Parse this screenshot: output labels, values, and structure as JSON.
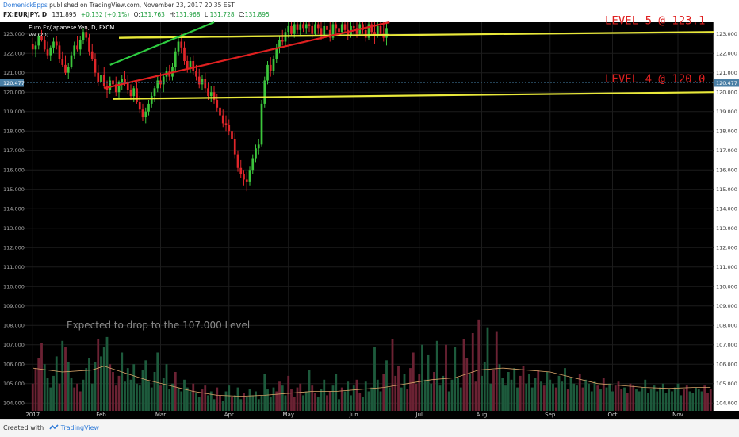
{
  "header": {
    "author": "DomenickEpps",
    "published": "published on TradingView.com, November 23, 2017 20:35 EST",
    "symbol": "FX:EURJPY, D",
    "last": "131.895",
    "change": "+0.132 (+0.1%)",
    "o_label": "O:",
    "o_value": "131.763",
    "h_label": "H:",
    "h_value": "131.968",
    "l_label": "L:",
    "l_value": "131.728",
    "c_label": "C:",
    "c_value": "131.895"
  },
  "footer": {
    "created_with": "Created with",
    "brand": "TradingView"
  },
  "chart_data": {
    "type": "candlestick",
    "title": "Euro Fx/Japanese Yen, D, FXCM",
    "volume_label": "Vol (20)",
    "y_ticks": [
      104,
      105,
      106,
      107,
      108,
      109,
      110,
      111,
      112,
      113,
      114,
      115,
      116,
      117,
      118,
      119,
      120,
      121,
      122,
      123
    ],
    "y_tick_labels": [
      "104.000",
      "105.000",
      "106.000",
      "107.000",
      "108.000",
      "109.000",
      "110.000",
      "111.000",
      "112.000",
      "113.000",
      "114.000",
      "115.000",
      "116.000",
      "117.000",
      "118.000",
      "119.000",
      "120.000",
      "121.000",
      "122.000",
      "123.000"
    ],
    "ylim": [
      103.6,
      123.6
    ],
    "x_labels": [
      {
        "label": "2017",
        "t": 0
      },
      {
        "label": "Feb",
        "t": 23
      },
      {
        "label": "Mar",
        "t": 43
      },
      {
        "label": "Apr",
        "t": 66
      },
      {
        "label": "May",
        "t": 86
      },
      {
        "label": "Jun",
        "t": 108
      },
      {
        "label": "Jul",
        "t": 130
      },
      {
        "label": "Aug",
        "t": 151
      },
      {
        "label": "Sep",
        "t": 174
      },
      {
        "label": "Oct",
        "t": 195
      },
      {
        "label": "Nov",
        "t": 217
      }
    ],
    "xlim": [
      -3,
      229
    ],
    "price_marker": {
      "label": "120.477",
      "value": 120.477
    },
    "annotations": [
      {
        "text": "LEVEL 5 @ 123.1",
        "value": 123.1,
        "color": "#e02020"
      },
      {
        "text": "LEVEL 4 @ 120.0",
        "value": 120.0,
        "color": "#e02020"
      },
      {
        "text": "Expected to drop to the 107.000 Level",
        "color": "#8a8a8a"
      }
    ],
    "trendlines": [
      {
        "color": "#e8e83a",
        "points": [
          [
            29,
            122.8
          ],
          [
            229,
            123.1
          ]
        ]
      },
      {
        "color": "#e8e83a",
        "points": [
          [
            27,
            119.65
          ],
          [
            229,
            120.0
          ]
        ]
      },
      {
        "color": "#e8e83a",
        "points": [
          [
            29,
            122.8
          ],
          [
            120,
            122.95
          ]
        ]
      },
      {
        "color": "#2ecc40",
        "points": [
          [
            26,
            121.4
          ],
          [
            61,
            123.6
          ]
        ]
      },
      {
        "color": "#e02020",
        "points": [
          [
            24,
            120.2
          ],
          [
            120,
            123.6
          ]
        ]
      }
    ],
    "candles": [
      [
        0,
        122.5,
        122.8,
        121.9,
        122.2
      ],
      [
        1,
        122.2,
        122.6,
        121.8,
        122.4
      ],
      [
        2,
        122.4,
        123.0,
        122.2,
        122.9
      ],
      [
        3,
        122.9,
        123.2,
        122.6,
        122.7
      ],
      [
        4,
        122.7,
        122.9,
        122.1,
        122.2
      ],
      [
        5,
        122.2,
        122.6,
        121.7,
        121.9
      ],
      [
        6,
        121.9,
        122.4,
        121.6,
        122.3
      ],
      [
        7,
        122.3,
        122.8,
        122.0,
        122.6
      ],
      [
        8,
        122.6,
        122.9,
        122.2,
        122.4
      ],
      [
        9,
        122.4,
        122.6,
        121.5,
        121.7
      ],
      [
        10,
        121.7,
        122.1,
        121.3,
        121.4
      ],
      [
        11,
        121.4,
        121.9,
        120.9,
        121.0
      ],
      [
        12,
        121.0,
        121.5,
        120.7,
        121.3
      ],
      [
        13,
        121.3,
        122.1,
        121.2,
        121.9
      ],
      [
        14,
        121.9,
        122.6,
        121.7,
        122.4
      ],
      [
        15,
        122.4,
        122.9,
        122.1,
        122.2
      ],
      [
        16,
        122.2,
        122.9,
        121.9,
        122.7
      ],
      [
        17,
        122.7,
        123.3,
        122.5,
        123.1
      ],
      [
        18,
        123.1,
        123.4,
        122.6,
        122.8
      ],
      [
        19,
        122.8,
        123.0,
        121.9,
        122.1
      ],
      [
        20,
        122.1,
        122.5,
        121.6,
        121.7
      ],
      [
        21,
        121.7,
        122.0,
        120.8,
        121.0
      ],
      [
        22,
        121.0,
        121.4,
        120.3,
        120.5
      ],
      [
        23,
        120.5,
        121.0,
        120.0,
        120.9
      ],
      [
        24,
        120.9,
        121.3,
        120.2,
        120.3
      ],
      [
        25,
        120.3,
        120.6,
        119.7,
        120.1
      ],
      [
        26,
        120.1,
        120.8,
        119.9,
        120.6
      ],
      [
        27,
        120.6,
        121.0,
        120.2,
        120.4
      ],
      [
        28,
        120.4,
        120.8,
        119.8,
        120.0
      ],
      [
        29,
        120.0,
        120.6,
        119.7,
        120.5
      ],
      [
        30,
        120.5,
        120.9,
        120.1,
        120.7
      ],
      [
        31,
        120.7,
        121.1,
        120.3,
        120.5
      ],
      [
        32,
        120.5,
        120.9,
        119.9,
        120.1
      ],
      [
        33,
        120.1,
        120.4,
        119.6,
        119.8
      ],
      [
        34,
        119.8,
        120.3,
        119.5,
        120.2
      ],
      [
        35,
        120.2,
        120.5,
        119.4,
        119.5
      ],
      [
        36,
        119.5,
        119.8,
        118.9,
        119.1
      ],
      [
        37,
        119.1,
        119.4,
        118.5,
        118.7
      ],
      [
        38,
        118.7,
        119.2,
        118.4,
        119.0
      ],
      [
        39,
        119.0,
        119.6,
        118.8,
        119.4
      ],
      [
        40,
        119.4,
        120.0,
        119.2,
        119.8
      ],
      [
        41,
        119.8,
        120.3,
        119.5,
        120.2
      ],
      [
        42,
        120.2,
        120.8,
        120.0,
        120.6
      ],
      [
        43,
        120.6,
        121.0,
        120.2,
        120.4
      ],
      [
        44,
        120.4,
        120.9,
        120.0,
        120.8
      ],
      [
        45,
        120.8,
        121.3,
        120.5,
        121.1
      ],
      [
        46,
        121.1,
        121.4,
        120.6,
        120.8
      ],
      [
        47,
        120.8,
        121.5,
        120.6,
        121.3
      ],
      [
        48,
        121.3,
        122.3,
        121.1,
        122.1
      ],
      [
        49,
        122.1,
        122.8,
        121.9,
        122.6
      ],
      [
        50,
        122.6,
        123.0,
        122.0,
        122.3
      ],
      [
        51,
        122.3,
        122.6,
        121.4,
        121.6
      ],
      [
        52,
        121.6,
        121.9,
        121.0,
        121.2
      ],
      [
        53,
        121.2,
        121.8,
        121.0,
        121.6
      ],
      [
        54,
        121.6,
        121.9,
        120.9,
        121.1
      ],
      [
        55,
        121.1,
        121.4,
        120.6,
        120.8
      ],
      [
        56,
        120.8,
        121.2,
        120.2,
        120.4
      ],
      [
        57,
        120.4,
        120.9,
        120.1,
        120.7
      ],
      [
        58,
        120.7,
        121.0,
        120.0,
        120.2
      ],
      [
        59,
        120.2,
        120.5,
        119.6,
        119.8
      ],
      [
        60,
        119.8,
        120.3,
        119.5,
        120.0
      ],
      [
        61,
        120.0,
        120.3,
        119.4,
        119.6
      ],
      [
        62,
        119.6,
        119.9,
        119.0,
        119.2
      ],
      [
        63,
        119.2,
        119.5,
        118.6,
        118.8
      ],
      [
        64,
        118.8,
        119.1,
        118.2,
        118.4
      ],
      [
        65,
        118.4,
        118.8,
        118.0,
        118.3
      ],
      [
        66,
        118.3,
        118.6,
        117.8,
        118.0
      ],
      [
        67,
        118.0,
        118.3,
        117.4,
        117.6
      ],
      [
        68,
        117.6,
        117.9,
        116.6,
        116.8
      ],
      [
        69,
        116.8,
        117.0,
        115.9,
        116.1
      ],
      [
        70,
        116.1,
        116.5,
        115.6,
        115.8
      ],
      [
        71,
        115.8,
        116.0,
        115.2,
        115.5
      ],
      [
        72,
        115.5,
        115.9,
        114.9,
        115.4
      ],
      [
        73,
        115.4,
        116.2,
        115.2,
        116.0
      ],
      [
        74,
        116.0,
        116.8,
        115.8,
        116.6
      ],
      [
        75,
        116.6,
        117.3,
        116.4,
        117.1
      ],
      [
        76,
        117.1,
        117.6,
        116.8,
        117.3
      ],
      [
        77,
        117.3,
        119.6,
        117.2,
        119.4
      ],
      [
        78,
        119.4,
        120.8,
        119.2,
        120.6
      ],
      [
        79,
        120.6,
        121.6,
        120.4,
        121.4
      ],
      [
        80,
        121.4,
        121.8,
        120.8,
        121.1
      ],
      [
        81,
        121.1,
        121.9,
        120.9,
        121.7
      ],
      [
        82,
        121.7,
        122.5,
        121.5,
        122.3
      ],
      [
        83,
        122.3,
        122.9,
        122.0,
        122.7
      ],
      [
        84,
        122.7,
        123.2,
        122.4,
        122.6
      ],
      [
        85,
        122.6,
        123.3,
        122.4,
        123.1
      ],
      [
        86,
        123.1,
        123.6,
        122.8,
        123.4
      ],
      [
        87,
        123.4,
        123.6,
        122.9,
        123.0
      ],
      [
        88,
        123.0,
        123.6,
        122.8,
        123.5
      ],
      [
        89,
        123.5,
        123.6,
        123.0,
        123.2
      ],
      [
        90,
        123.2,
        123.6,
        122.9,
        123.5
      ],
      [
        91,
        123.5,
        123.6,
        123.1,
        123.3
      ],
      [
        92,
        123.3,
        123.6,
        123.0,
        123.5
      ],
      [
        93,
        123.5,
        123.6,
        123.1,
        123.4
      ],
      [
        94,
        123.4,
        123.6,
        122.8,
        123.0
      ],
      [
        95,
        123.0,
        123.6,
        122.9,
        123.5
      ],
      [
        96,
        123.5,
        123.6,
        123.0,
        123.3
      ],
      [
        97,
        123.3,
        123.6,
        122.7,
        122.9
      ],
      [
        98,
        122.9,
        123.6,
        122.8,
        123.4
      ],
      [
        99,
        123.4,
        123.6,
        123.0,
        123.2
      ],
      [
        100,
        123.2,
        123.6,
        122.6,
        122.8
      ],
      [
        101,
        122.8,
        123.6,
        122.7,
        123.5
      ],
      [
        102,
        123.5,
        123.6,
        123.0,
        123.3
      ],
      [
        103,
        123.3,
        123.6,
        122.9,
        123.1
      ],
      [
        104,
        123.1,
        123.6,
        123.0,
        123.5
      ],
      [
        105,
        123.5,
        123.6,
        123.1,
        123.2
      ],
      [
        106,
        123.2,
        123.6,
        122.7,
        122.9
      ],
      [
        107,
        122.9,
        123.6,
        122.8,
        123.4
      ],
      [
        108,
        123.4,
        123.6,
        123.0,
        123.3
      ],
      [
        109,
        123.3,
        123.6,
        122.8,
        123.0
      ],
      [
        110,
        123.0,
        123.6,
        122.9,
        123.5
      ],
      [
        111,
        123.5,
        123.6,
        123.0,
        123.2
      ],
      [
        112,
        123.2,
        123.6,
        122.6,
        122.8
      ],
      [
        113,
        122.8,
        123.6,
        122.7,
        123.5
      ],
      [
        114,
        123.5,
        123.6,
        122.9,
        123.1
      ],
      [
        115,
        123.1,
        123.6,
        122.5,
        122.9
      ],
      [
        116,
        122.9,
        123.6,
        122.8,
        123.4
      ],
      [
        117,
        123.4,
        123.6,
        122.9,
        123.0
      ],
      [
        118,
        123.0,
        123.6,
        122.6,
        122.8
      ],
      [
        119,
        122.8,
        123.6,
        122.4,
        123.3
      ]
    ],
    "volume_ma": [
      [
        0,
        105.8
      ],
      [
        10,
        105.6
      ],
      [
        20,
        105.7
      ],
      [
        24,
        105.9
      ],
      [
        30,
        105.6
      ],
      [
        38,
        105.2
      ],
      [
        46,
        104.9
      ],
      [
        54,
        104.6
      ],
      [
        62,
        104.4
      ],
      [
        70,
        104.35
      ],
      [
        78,
        104.4
      ],
      [
        86,
        104.5
      ],
      [
        94,
        104.6
      ],
      [
        102,
        104.6
      ],
      [
        110,
        104.7
      ],
      [
        118,
        104.8
      ],
      [
        126,
        105.0
      ],
      [
        134,
        105.2
      ],
      [
        142,
        105.3
      ],
      [
        150,
        105.7
      ],
      [
        158,
        105.8
      ],
      [
        166,
        105.7
      ],
      [
        174,
        105.6
      ],
      [
        182,
        105.3
      ],
      [
        190,
        105.0
      ],
      [
        198,
        104.9
      ],
      [
        206,
        104.8
      ],
      [
        214,
        104.75
      ],
      [
        222,
        104.8
      ],
      [
        228,
        104.8
      ]
    ],
    "volume": [
      105.0,
      105.8,
      106.3,
      107.1,
      106.0,
      105.3,
      104.8,
      105.4,
      106.4,
      105.0,
      107.2,
      106.9,
      106.1,
      105.3,
      104.8,
      105.0,
      104.6,
      105.2,
      105.8,
      106.3,
      105.0,
      106.1,
      107.3,
      106.4,
      106.9,
      107.4,
      106.0,
      105.6,
      104.9,
      105.4,
      106.6,
      105.1,
      105.8,
      105.2,
      106.0,
      105.0,
      104.9,
      105.7,
      106.2,
      105.1,
      104.8,
      105.6,
      106.6,
      104.9,
      105.3,
      106.0,
      104.7,
      105.0,
      105.6,
      104.8,
      104.6,
      105.2,
      104.8,
      104.6,
      105.0,
      104.5,
      104.3,
      104.7,
      104.9,
      104.4,
      104.6,
      104.2,
      104.8,
      104.4,
      104.1,
      104.6,
      104.9,
      104.3,
      104.4,
      104.8,
      104.2,
      104.5,
      104.3,
      104.7,
      104.4,
      104.6,
      104.2,
      104.4,
      105.5,
      104.7,
      104.3,
      104.8,
      104.6,
      105.1,
      104.9,
      104.4,
      105.4,
      104.7,
      104.3,
      104.8,
      105.0,
      104.4,
      104.6,
      105.7,
      104.9,
      104.5,
      104.3,
      104.7,
      105.2,
      104.4,
      104.6,
      104.9,
      105.5,
      104.2,
      104.8,
      104.6,
      105.1,
      104.4,
      104.9,
      105.2,
      104.5,
      104.3,
      105.1,
      104.6,
      104.8,
      106.9,
      105.2,
      104.6,
      105.5,
      106.2,
      104.8,
      107.3,
      105.4,
      105.9,
      104.8,
      105.5,
      104.7,
      105.8,
      106.6,
      105.0,
      105.5,
      107.0,
      105.2,
      106.5,
      105.0,
      105.6,
      107.2,
      104.9,
      105.4,
      107.0,
      104.6,
      105.2,
      106.9,
      105.3,
      104.8,
      107.3,
      106.3,
      105.5,
      107.6,
      105.1,
      108.3,
      105.4,
      106.1,
      107.9,
      105.0,
      105.7,
      107.7,
      106.0,
      105.3,
      104.9,
      105.6,
      105.2,
      105.8,
      104.8,
      105.4,
      105.9,
      105.0,
      105.5,
      104.8,
      105.3,
      105.7,
      105.1,
      104.9,
      105.6,
      105.2,
      105.0,
      104.8,
      105.4,
      105.1,
      105.8,
      104.7,
      105.3,
      105.0,
      104.9,
      105.5,
      104.8,
      105.2,
      105.0,
      104.6,
      105.1,
      104.9,
      104.7,
      105.3,
      104.8,
      105.0,
      104.6,
      104.9,
      105.1,
      104.7,
      104.8,
      104.5,
      105.0,
      104.9,
      104.7,
      104.6,
      104.8,
      105.2,
      104.5,
      104.7,
      104.9,
      104.6,
      104.8,
      105.0,
      104.5,
      104.7,
      104.6,
      104.8,
      105.0,
      104.4,
      104.7,
      104.9,
      104.6,
      104.5,
      104.8,
      104.7,
      104.6,
      104.9,
      104.5,
      104.7
    ],
    "volume_dir": "mixed"
  }
}
